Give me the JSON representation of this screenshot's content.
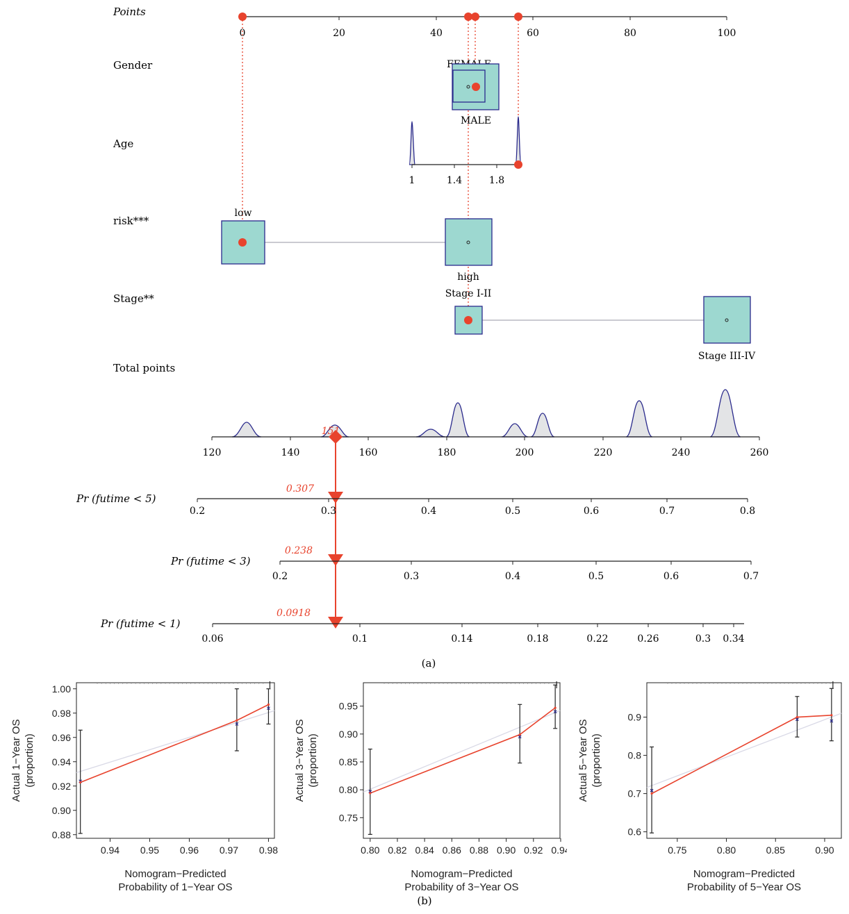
{
  "nomogram": {
    "row_labels": {
      "points": "Points",
      "gender": "Gender",
      "age": "Age",
      "risk": "risk***",
      "stage": "Stage**",
      "total": "Total points",
      "pr5": "Pr (futime < 5)",
      "pr3": "Pr (futime < 3)",
      "pr1": "Pr (futime < 1)"
    },
    "points_axis": {
      "min": 0,
      "max": 100,
      "ticks": [
        0,
        20,
        40,
        60,
        80,
        100
      ]
    },
    "selected_points": [
      0,
      46.5,
      48,
      56.5
    ],
    "gender": {
      "labels": [
        "FEMALE",
        "MALE"
      ],
      "female_points": 47,
      "male_points": 46.5,
      "selected": "MALE"
    },
    "age": {
      "ticks": [
        1,
        1.4,
        1.8
      ],
      "min": 1,
      "max": 2,
      "selected_points": 56.5
    },
    "risk": {
      "labels": [
        "low",
        "high"
      ],
      "low_points": 0,
      "high_points": 46.5,
      "selected": "low"
    },
    "stage": {
      "labels": [
        "Stage I-II",
        "Stage III-IV"
      ],
      "i_ii_points": 46.5,
      "iii_iv_points": 100,
      "selected": "Stage I-II"
    },
    "total_points": {
      "ticks": [
        120,
        140,
        160,
        180,
        200,
        220,
        240,
        260
      ],
      "min": 120,
      "max": 260,
      "value_label": "151",
      "value": 151,
      "density_peaks": [
        129,
        151,
        176,
        183,
        198,
        204,
        229,
        251
      ]
    },
    "pr5": {
      "ticks": [
        0.2,
        0.3,
        0.4,
        0.5,
        0.6,
        0.7,
        0.8
      ],
      "value_label": "0.307"
    },
    "pr3": {
      "ticks": [
        0.2,
        0.3,
        0.4,
        0.5,
        0.6,
        0.7
      ],
      "value_label": "0.238"
    },
    "pr1": {
      "ticks": [
        0.06,
        0.1,
        0.14,
        0.18,
        0.22,
        0.26,
        0.3,
        0.34
      ],
      "value_label": "0.0918"
    },
    "caption": "(a)"
  },
  "caption_b": "(b)",
  "chart_data": [
    {
      "type": "line",
      "xlabel": "Nomogram−Predicted\nProbability of 1−Year OS",
      "ylabel": "Actual 1−Year OS\n(proportion)",
      "xlim": [
        0.9315,
        0.9815
      ],
      "ylim": [
        0.877,
        1.005
      ],
      "xticks": [
        "0.94",
        "0.95",
        "0.96",
        "0.97",
        "0.98"
      ],
      "yticks": [
        "0.88",
        "0.90",
        "0.92",
        "0.94",
        "0.96",
        "0.98",
        "1.00"
      ],
      "series": [
        {
          "x": [
            0.9325,
            0.972,
            0.98
          ],
          "y": [
            0.923,
            0.974,
            0.987
          ],
          "yerr_low": [
            0.881,
            0.949,
            0.971
          ],
          "yerr_high": [
            0.966,
            1.0,
            1.0
          ],
          "observed": [
            0.924,
            0.971,
            0.984
          ]
        }
      ],
      "ideal": {
        "x": [
          0.9315,
          0.9815
        ],
        "y": [
          0.931,
          0.982
        ]
      }
    },
    {
      "type": "line",
      "xlabel": "Nomogram−Predicted\nProbability of 3−Year OS",
      "ylabel": "Actual 3−Year OS\n(proportion)",
      "xlim": [
        0.795,
        0.9395
      ],
      "ylim": [
        0.713,
        0.992
      ],
      "xticks": [
        "0.80",
        "0.82",
        "0.84",
        "0.86",
        "0.88",
        "0.90",
        "0.92",
        "0.94"
      ],
      "yticks": [
        "0.75",
        "0.80",
        "0.85",
        "0.90",
        "0.95"
      ],
      "series": [
        {
          "x": [
            0.8,
            0.91,
            0.936
          ],
          "y": [
            0.794,
            0.899,
            0.947
          ],
          "yerr_low": [
            0.72,
            0.848,
            0.91
          ],
          "yerr_high": [
            0.873,
            0.953,
            0.988
          ],
          "observed": [
            0.797,
            0.895,
            0.94
          ]
        }
      ],
      "ideal": {
        "x": [
          0.795,
          0.9395
        ],
        "y": [
          0.796,
          0.942
        ]
      }
    },
    {
      "type": "line",
      "xlabel": "Nomogram−Predicted\nProbability of 5−Year OS",
      "ylabel": "Actual 5−Year OS\n(proportion)",
      "xlim": [
        0.719,
        0.917
      ],
      "ylim": [
        0.583,
        0.99
      ],
      "xticks": [
        "0.75",
        "0.80",
        "0.85",
        "0.90"
      ],
      "yticks": [
        "0.6",
        "0.7",
        "0.8",
        "0.9"
      ],
      "series": [
        {
          "x": [
            0.724,
            0.872,
            0.907
          ],
          "y": [
            0.7,
            0.9,
            0.905
          ],
          "yerr_low": [
            0.597,
            0.848,
            0.838
          ],
          "yerr_high": [
            0.822,
            0.954,
            0.975
          ],
          "observed": [
            0.708,
            0.894,
            0.89
          ]
        }
      ],
      "ideal": {
        "x": [
          0.719,
          0.917
        ],
        "y": [
          0.716,
          0.91
        ]
      }
    }
  ],
  "colors": {
    "red": "#e8432d",
    "navy": "#2a2a8c",
    "teal": "#9dd8d0",
    "gray_fill": "#e3e4e6",
    "ideal_line": "#d9d9e6"
  }
}
